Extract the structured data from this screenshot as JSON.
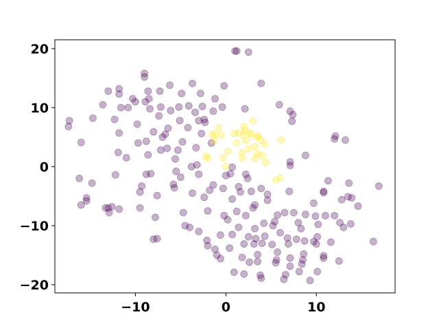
{
  "chart_data": {
    "type": "scatter",
    "xlim": [
      -18.9,
      18.7
    ],
    "ylim": [
      -21.4,
      21.5
    ],
    "xticks": [
      {
        "value": -10,
        "label": "−10"
      },
      0,
      10
    ],
    "yticks": [
      {
        "value": -20,
        "label": "−20"
      },
      {
        "value": -10,
        "label": "−10"
      },
      0,
      10,
      20
    ],
    "alpha": 0.3,
    "series": [
      {
        "color": "#440154",
        "x": [
          -17.3,
          -17.4,
          -16,
          -16,
          -16.2,
          -15.4,
          -15.4,
          -14.8,
          -14.7,
          -13.6,
          -13.3,
          -13,
          -12.9,
          -12.6,
          -13,
          -12.3,
          -11.8,
          -11.8,
          -11.8,
          -11.9,
          -12.2,
          -11.8,
          -11.6,
          -11,
          -10.8,
          -10.3,
          -10,
          -9.8,
          -9.7,
          -9.5,
          -9.5,
          -9.3,
          -9,
          -9,
          -8.9,
          -8.5,
          -8.8,
          -8.6,
          -8.4,
          -8.6,
          -8.8,
          -8.3,
          -8,
          -8,
          -7.6,
          -7.8,
          -7.6,
          -7.4,
          -7.3,
          -7.2,
          -7.2,
          -7,
          -6.7,
          -6.4,
          -6.5,
          -6.2,
          -6.1,
          -5.8,
          -5.7,
          -5.6,
          -5.5,
          -5.3,
          -5.2,
          -5.1,
          -5,
          -4.9,
          -4.8,
          -4.7,
          -4.5,
          -4.2,
          -4.1,
          -4,
          -3.8,
          -3.7,
          -3.7,
          -3.4,
          -3.3,
          -3.2,
          -3,
          -3,
          -3,
          -2.8,
          -2.7,
          -2.6,
          -2.4,
          -2.4,
          -2.3,
          -2.1,
          -2,
          -2,
          -1.8,
          -1.6,
          -1.4,
          -1.4,
          -1.2,
          -1.2,
          -1,
          -0.6,
          -0.6,
          -0.4,
          -0.3,
          -0.2,
          -0.2,
          0,
          0.2,
          0.4,
          0.7,
          0.5,
          0.7,
          0.7,
          0.9,
          1,
          1.2,
          1.2,
          1.4,
          1.4,
          1.6,
          1.8,
          2,
          2,
          2.1,
          2.2,
          2.2,
          2.4,
          2.5,
          2.5,
          2.6,
          2.8,
          3,
          3.1,
          3.2,
          3.2,
          3.3,
          3.5,
          3.5,
          3.8,
          3.9,
          3.9,
          3.9,
          4,
          4.2,
          4.3,
          4.6,
          4.6,
          5.1,
          5.2,
          5.4,
          5.5,
          5.6,
          5.7,
          5.7,
          5.9,
          6,
          6.4,
          6.5,
          6.6,
          6.9,
          6.8,
          7,
          7.1,
          7.1,
          7.1,
          7.1,
          7.1,
          7.3,
          7.4,
          7.5,
          7.8,
          8,
          8.1,
          8.4,
          8.5,
          8.6,
          8.3,
          8.7,
          8.8,
          8.8,
          9.3,
          9.7,
          9.7,
          9.9,
          10,
          10.1,
          10.1,
          10.2,
          10.8,
          10.8,
          10.8,
          10.8,
          11,
          11.3,
          11.6,
          12,
          12,
          12.1,
          12.5,
          12.6,
          12.8,
          13,
          13.2,
          13.6,
          13.5,
          13.8,
          13.9,
          14.6,
          16.3,
          16.9
        ],
        "values": [
          7.8,
          6.8,
          4.1,
          -6.5,
          -2,
          -5.3,
          -5.8,
          -2.8,
          8.2,
          10.5,
          -7,
          -7,
          -7.8,
          -6.8,
          12.8,
          8,
          12.3,
          13.2,
          5.7,
          2.4,
          -1.4,
          -7.2,
          10,
          1.5,
          10,
          11.5,
          11,
          7.2,
          4,
          -4.3,
          -7,
          -3.3,
          15.8,
          15.2,
          11,
          11.5,
          4.3,
          12.8,
          9.8,
          2,
          -1.3,
          -1.2,
          5.9,
          -12.3,
          -12.2,
          -8.6,
          -4.9,
          8.6,
          12.8,
          10.1,
          2.8,
          5,
          5.5,
          6.5,
          3.1,
          13.8,
          9.5,
          -3,
          -3.6,
          1.3,
          -0.8,
          2.8,
          10.1,
          7.8,
          -1.8,
          12.4,
          4.2,
          -7.8,
          -10,
          6.6,
          10.3,
          -10.3,
          0,
          -4.5,
          14.1,
          9.2,
          3.2,
          0.3,
          7.8,
          -11,
          -1.3,
          12.4,
          5.6,
          10.2,
          -5.2,
          8,
          7.5,
          -12.5,
          -13.4,
          -7.5,
          -4,
          4,
          -3.1,
          9.4,
          -14,
          11.5,
          -15,
          -15.6,
          -11.6,
          10.1,
          -3.7,
          -8.3,
          13.7,
          -1.5,
          -9,
          -13.8,
          -11.5,
          -1.2,
          -5.5,
          -0.1,
          -17.9,
          19.6,
          19.6,
          -7.6,
          -10.3,
          -3.4,
          -4.3,
          -15.4,
          -13.1,
          -18.2,
          9.8,
          -1.3,
          -8.3,
          -2,
          -11.9,
          19.4,
          -16.2,
          -4.2,
          -7,
          -13.1,
          -6.5,
          -10.5,
          -12.2,
          -14.9,
          -16.1,
          -18.4,
          -18.9,
          14.1,
          -3.7,
          -13,
          -9.6,
          -11.8,
          -4.7,
          -5.7,
          -13.2,
          -10,
          -9.3,
          -16.3,
          -15.8,
          -8.2,
          -14.5,
          10.5,
          -11.2,
          -19.1,
          -7.8,
          -18.3,
          -13.1,
          -12.1,
          -4.2,
          -15.5,
          -16.9,
          0.8,
          0.2,
          9.4,
          7.7,
          8.8,
          -7.8,
          -12.3,
          -9.5,
          -17.8,
          -16.5,
          -15.8,
          -14.8,
          -10.5,
          -12.6,
          1.9,
          -8.1,
          -19.3,
          -12.7,
          -6.2,
          -8.4,
          -13.1,
          -11.9,
          -17.8,
          -9.8,
          -4.2,
          -4.4,
          -15.1,
          -15.5,
          -8.3,
          -2.4,
          -12.8,
          -8.3,
          4.7,
          5.2,
          -16,
          -9.5,
          -5.6,
          -10.3,
          4.5,
          -2.8,
          -5.1,
          -9.7,
          -5.3,
          -6.7,
          -12.7,
          -3.3
        ]
      },
      {
        "color": "#fde725",
        "x": [
          -2,
          -2.2,
          -1.5,
          -1.3,
          -1.2,
          -0.8,
          -0.5,
          -0.3,
          0,
          0.2,
          0.9,
          1.2,
          1.4,
          1.8,
          1.8,
          1.9,
          2,
          2.1,
          2.2,
          2.5,
          2.6,
          2.8,
          3,
          3.2,
          3.2,
          3.4,
          3.5,
          3.6,
          3.9,
          4,
          4.4,
          4.3,
          5.5,
          6,
          6.1
        ],
        "values": [
          1.4,
          1.8,
          5.5,
          4.4,
          5.4,
          6.6,
          5.3,
          1.5,
          0,
          2.6,
          5.6,
          4,
          5.7,
          1.4,
          2.4,
          5.3,
          6.8,
          6.2,
          4.4,
          3,
          5.7,
          5.5,
          7.7,
          1.4,
          3.4,
          5,
          2.2,
          5.2,
          4.5,
          1.9,
          0.7,
          3.8,
          -2.3,
          -1.9,
          4.5
        ]
      }
    ]
  }
}
